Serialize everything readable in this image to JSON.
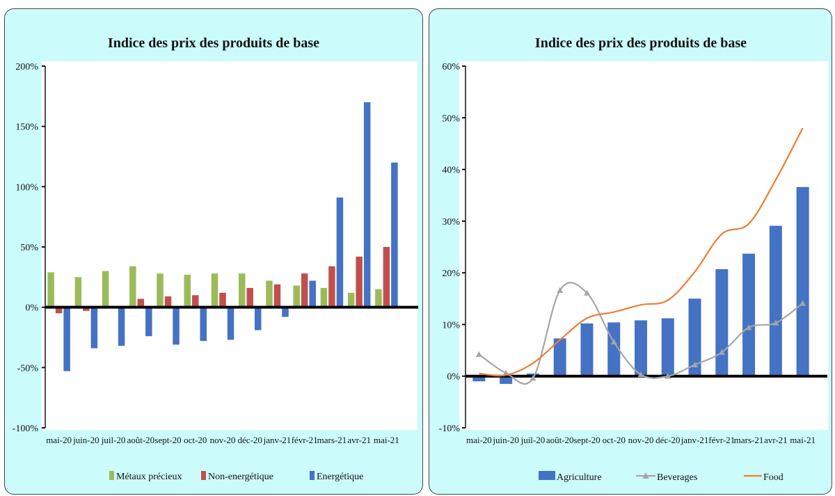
{
  "chart_data": [
    {
      "type": "bar",
      "title": "Indice des prix des produits de base",
      "categories": [
        "mai-20",
        "juin-20",
        "juil-20",
        "août-20",
        "sept-20",
        "oct-20",
        "nov-20",
        "déc-20",
        "janv-21",
        "févr-21",
        "mars-21",
        "avr-21",
        "mai-21"
      ],
      "series": [
        {
          "name": "Métaux précieux",
          "color": "#9bbb59",
          "values": [
            29,
            25,
            30,
            34,
            28,
            27,
            28,
            28,
            22,
            18,
            16,
            12,
            15
          ]
        },
        {
          "name": "Non-energétique",
          "color": "#c0504d",
          "values": [
            -5,
            -3,
            0,
            7,
            9,
            10,
            12,
            16,
            19,
            28,
            34,
            42,
            50
          ]
        },
        {
          "name": "Energétique",
          "color": "#4472c4",
          "values": [
            -53,
            -34,
            -32,
            -24,
            -31,
            -28,
            -27,
            -19,
            -8,
            22,
            91,
            170,
            120
          ]
        }
      ],
      "ylim": [
        -100,
        200
      ],
      "yticks": [
        "-100%",
        "-50%",
        "0%",
        "50%",
        "100%",
        "150%",
        "200%"
      ],
      "ytick_values": [
        -100,
        -50,
        0,
        50,
        100,
        150,
        200
      ],
      "legend_position": "bottom"
    },
    {
      "type": "bar",
      "title": "Indice des prix des produits de base",
      "categories": [
        "mai-20",
        "juin-20",
        "juil-20",
        "août-20",
        "sept-20",
        "oct-20",
        "nov-20",
        "déc-20",
        "janv-21",
        "févr-21",
        "mars-21",
        "avr-21",
        "mai-21"
      ],
      "series": [
        {
          "name": "Agriculture",
          "kind": "bar",
          "color": "#4472c4",
          "values": [
            -1,
            -1.5,
            0.5,
            7.3,
            10.2,
            10.4,
            10.8,
            11.2,
            15,
            20.7,
            23.7,
            29.1,
            36.6
          ]
        },
        {
          "name": "Beverages",
          "kind": "line-marker",
          "color": "#a5a5a5",
          "values": [
            4.2,
            0.6,
            -0.4,
            16.6,
            16.1,
            6.6,
            0.3,
            0,
            2.2,
            4.6,
            9.4,
            10.3,
            14.1
          ]
        },
        {
          "name": "Food",
          "kind": "line",
          "color": "#ed7d31",
          "values": [
            0.5,
            0.2,
            2.5,
            7,
            11.2,
            12.4,
            13.8,
            14.7,
            20.2,
            27.5,
            29.5,
            38,
            48
          ]
        }
      ],
      "ylim": [
        -10,
        60
      ],
      "yticks": [
        "-10%",
        "0%",
        "10%",
        "20%",
        "30%",
        "40%",
        "50%",
        "60%"
      ],
      "ytick_values": [
        -10,
        0,
        10,
        20,
        30,
        40,
        50,
        60
      ],
      "legend_position": "bottom"
    }
  ]
}
